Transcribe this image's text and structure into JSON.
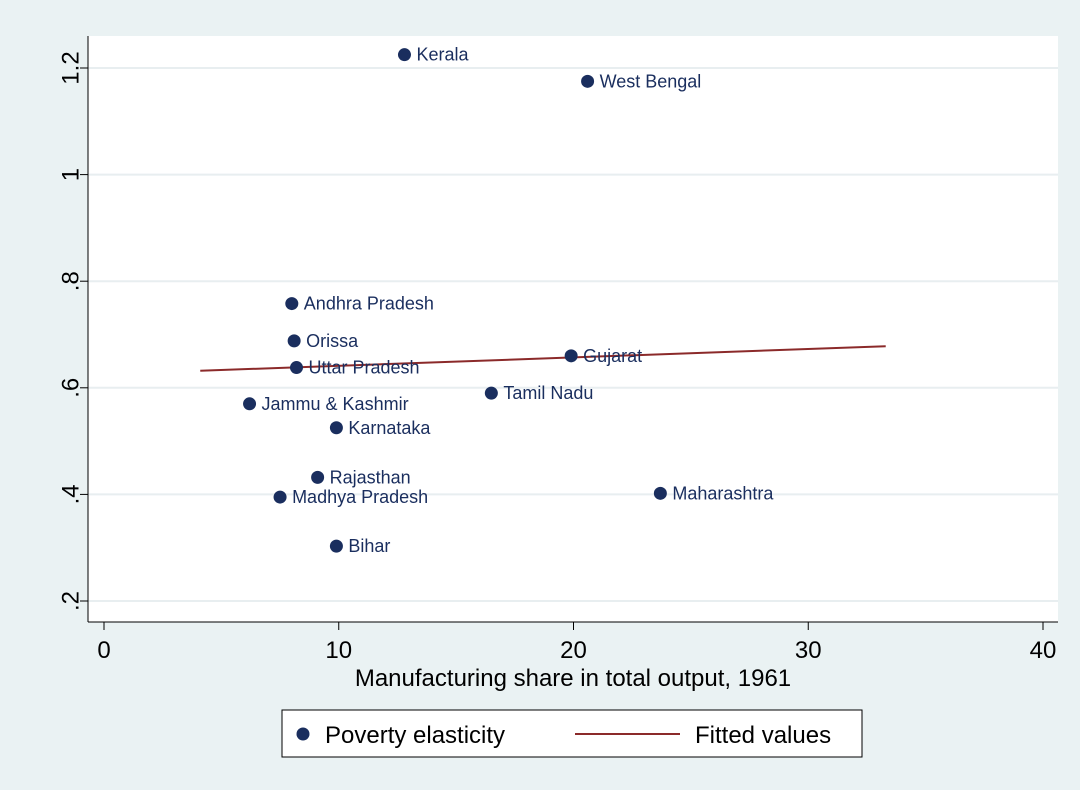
{
  "chart_data": {
    "type": "scatter",
    "title": "",
    "xlabel": "Manufacturing share in total output, 1961",
    "ylabel": "",
    "xlim": [
      0,
      40
    ],
    "ylim": [
      0.2,
      1.25
    ],
    "x_ticks": [
      "0",
      "10",
      "20",
      "30",
      "40"
    ],
    "y_ticks": [
      ".2",
      ".4",
      ".6",
      ".8",
      "1",
      "1.2"
    ],
    "grid": true,
    "legend_position": "bottom",
    "series": [
      {
        "name": "Poverty elasticity",
        "kind": "scatter",
        "color": "#1a2e5e",
        "points": [
          {
            "label": "Kerala",
            "x": 12.8,
            "y": 1.225
          },
          {
            "label": "West Bengal",
            "x": 20.6,
            "y": 1.175
          },
          {
            "label": "Andhra Pradesh",
            "x": 8.0,
            "y": 0.758
          },
          {
            "label": "Orissa",
            "x": 8.1,
            "y": 0.688
          },
          {
            "label": "Uttar Pradesh",
            "x": 8.2,
            "y": 0.638
          },
          {
            "label": "Gujarat",
            "x": 19.9,
            "y": 0.66
          },
          {
            "label": "Tamil Nadu",
            "x": 16.5,
            "y": 0.59
          },
          {
            "label": "Jammu & Kashmir",
            "x": 6.2,
            "y": 0.57
          },
          {
            "label": "Karnataka",
            "x": 9.9,
            "y": 0.525
          },
          {
            "label": "Rajasthan",
            "x": 9.1,
            "y": 0.432
          },
          {
            "label": "Madhya Pradesh",
            "x": 7.5,
            "y": 0.395
          },
          {
            "label": "Maharashtra",
            "x": 23.7,
            "y": 0.402
          },
          {
            "label": "Bihar",
            "x": 9.9,
            "y": 0.303
          }
        ]
      },
      {
        "name": "Fitted values",
        "kind": "line",
        "color": "#8b2a2a",
        "x": [
          4.1,
          33.3
        ],
        "y": [
          0.632,
          0.678
        ]
      }
    ]
  }
}
